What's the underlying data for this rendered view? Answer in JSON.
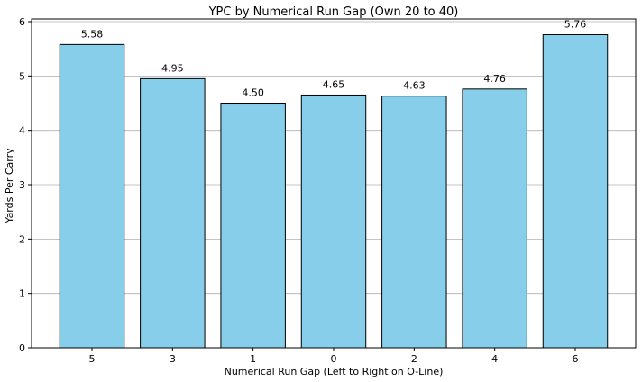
{
  "chart_data": {
    "type": "bar",
    "title": "YPC by Numerical Run Gap (Own 20 to 40)",
    "xlabel": "Numerical Run Gap (Left to Right on O-Line)",
    "ylabel": "Yards Per Carry",
    "categories": [
      "5",
      "3",
      "1",
      "0",
      "2",
      "4",
      "6"
    ],
    "values": [
      5.58,
      4.95,
      4.5,
      4.65,
      4.63,
      4.76,
      5.76
    ],
    "value_labels": [
      "5.58",
      "4.95",
      "4.50",
      "4.65",
      "4.63",
      "4.76",
      "5.76"
    ],
    "ylim": [
      0,
      6.05
    ],
    "yticks": [
      0,
      1,
      2,
      3,
      4,
      5,
      6
    ],
    "grid": "y",
    "bar_color": "#87ceeb",
    "bar_edge_color": "#000000"
  }
}
